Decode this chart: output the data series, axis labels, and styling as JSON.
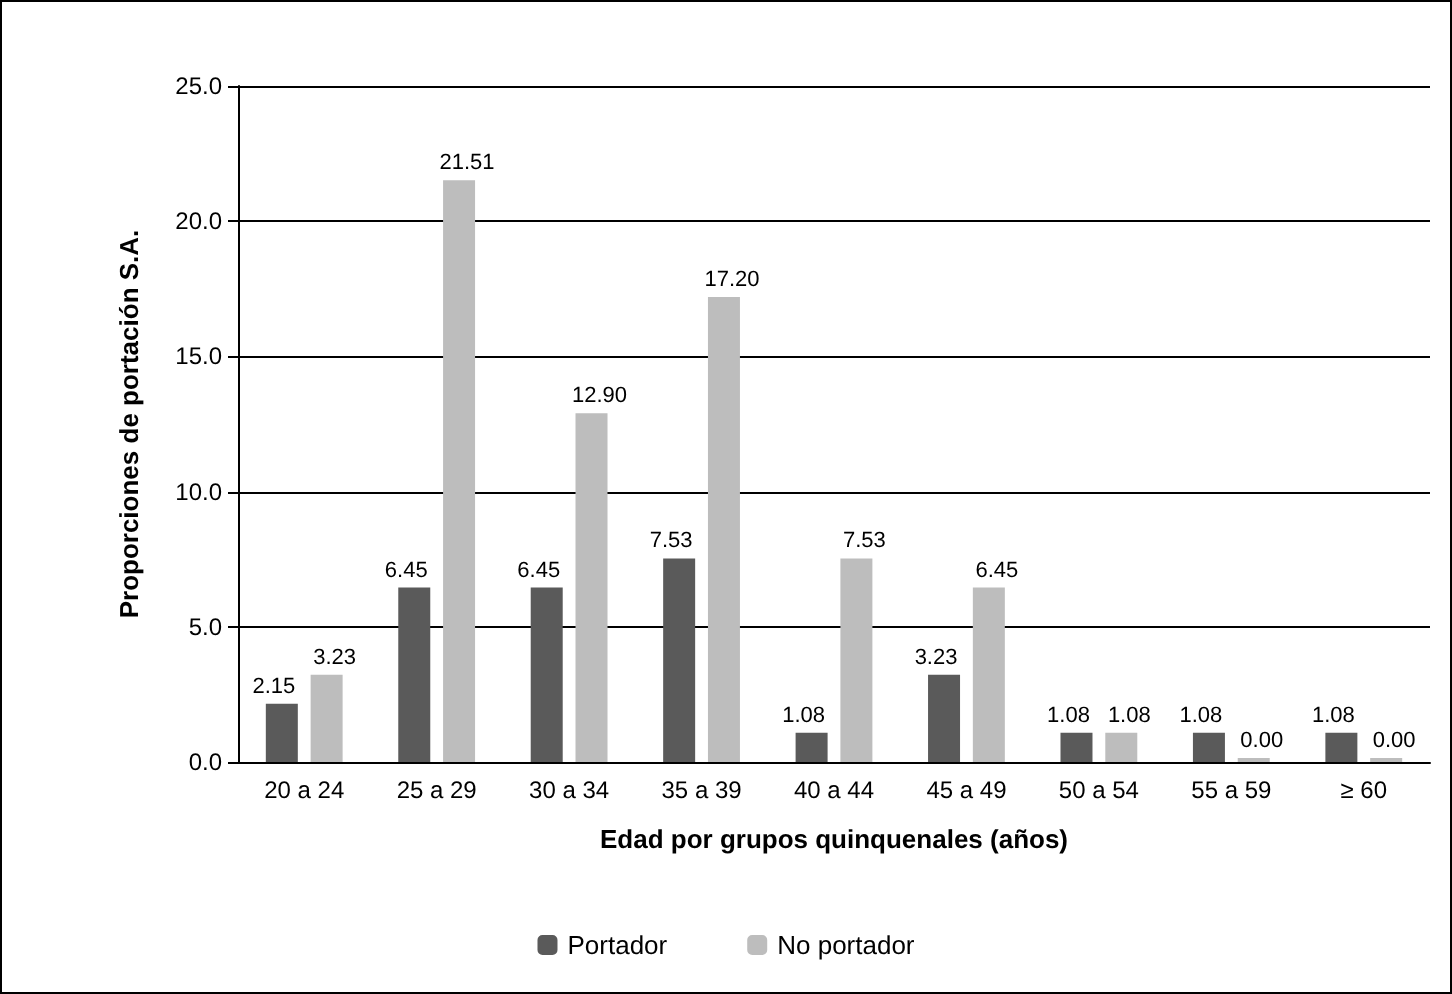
{
  "chart_data": {
    "type": "bar",
    "xlabel": "Edad por grupos quinquenales (años)",
    "ylabel": "Proporciones de portación S.A.",
    "categories": [
      "20 a 24",
      "25 a 29",
      "30 a 34",
      "35 a 39",
      "40 a 44",
      "45 a 49",
      "50 a 54",
      "55 a 59",
      "≥ 60"
    ],
    "series": [
      {
        "name": "Portador",
        "color": "#5a5a5a",
        "values": [
          2.15,
          6.45,
          6.45,
          7.53,
          1.08,
          3.23,
          1.08,
          1.08,
          1.08
        ],
        "value_labels": [
          "2.15",
          "6.45",
          "6.45",
          "7.53",
          "1.08",
          "3.23",
          "1.08",
          "1.08",
          "1.08"
        ]
      },
      {
        "name": "No portador",
        "color": "#bdbdbd",
        "values": [
          3.23,
          21.51,
          12.9,
          17.2,
          7.53,
          6.45,
          1.08,
          0,
          0
        ],
        "value_labels": [
          "3.23",
          "21.51",
          "12.90",
          "17.20",
          "7.53",
          "6.45",
          "1.08",
          "0.00",
          "0.00"
        ]
      }
    ],
    "ylim": [
      0,
      25
    ],
    "yticks": [
      {
        "value": 0,
        "label": "0.0"
      },
      {
        "value": 5,
        "label": "5.0"
      },
      {
        "value": 10,
        "label": "10.0"
      },
      {
        "value": 15,
        "label": "15.0"
      },
      {
        "value": 20,
        "label": "20.0"
      },
      {
        "value": 25,
        "label": "25.0"
      }
    ],
    "grid": "y",
    "legend": "bottom"
  }
}
